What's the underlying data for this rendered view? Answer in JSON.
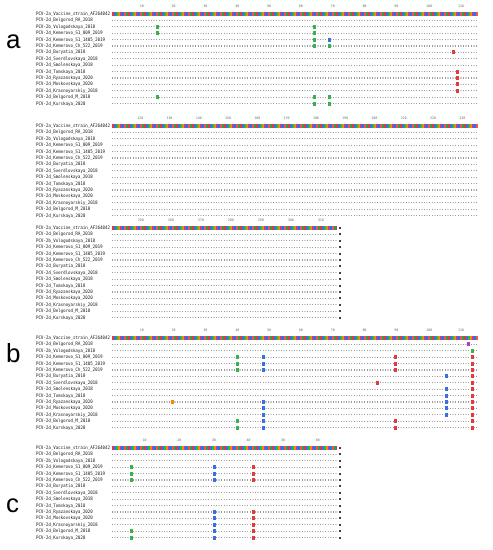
{
  "panels": [
    {
      "letter": "a",
      "blocks": [
        {
          "ruler": [
            "10",
            "20",
            "30",
            "40",
            "50",
            "60",
            "70",
            "80",
            "90",
            "100",
            "110"
          ],
          "rows": [
            {
              "name": "PCV-2a_Vaccine_strain_AF264042",
              "ref": true,
              "marks": []
            },
            {
              "name": "PCV-2d_Belgorod_RA_2018",
              "marks": []
            },
            {
              "name": "PCV-2b_Vologodskaya_2018",
              "marks": [
                {
                  "p": 0.12,
                  "c": "#37b24d"
                },
                {
                  "p": 0.55,
                  "c": "#37b24d"
                }
              ]
            },
            {
              "name": "PCV-2d_Kemerovo_S1_809_2019",
              "marks": [
                {
                  "p": 0.12,
                  "c": "#37b24d"
                },
                {
                  "p": 0.55,
                  "c": "#37b24d"
                }
              ]
            },
            {
              "name": "PCV-2d_Kemerovo_S1_1405_2019",
              "marks": [
                {
                  "p": 0.55,
                  "c": "#37b24d"
                },
                {
                  "p": 0.59,
                  "c": "#3b6fe0"
                }
              ]
            },
            {
              "name": "PCV-2d_Kemerovo_Ch_522_2019",
              "marks": [
                {
                  "p": 0.55,
                  "c": "#37b24d"
                },
                {
                  "p": 0.59,
                  "c": "#37b24d"
                }
              ]
            },
            {
              "name": "PCV-2d_Buryatia_2018",
              "marks": [
                {
                  "p": 0.93,
                  "c": "#e23b3b"
                }
              ]
            },
            {
              "name": "PCV-2d_Sverdlovskaya_2018",
              "marks": []
            },
            {
              "name": "PCV-2d_Smolenskaya_2018",
              "marks": []
            },
            {
              "name": "PCV-2d_Tomskaya_2018",
              "marks": [
                {
                  "p": 0.94,
                  "c": "#e23b3b"
                }
              ]
            },
            {
              "name": "PCV-2d_Ryazanskaya_2020",
              "marks": [
                {
                  "p": 0.94,
                  "c": "#e23b3b"
                }
              ]
            },
            {
              "name": "PCV-2d_Moskovskaya_2020",
              "marks": [
                {
                  "p": 0.94,
                  "c": "#e23b3b"
                }
              ]
            },
            {
              "name": "PCV-2d_Krasnoyarskiy_2018",
              "marks": [
                {
                  "p": 0.94,
                  "c": "#e23b3b"
                }
              ]
            },
            {
              "name": "PCV-2d_Belgorod_M_2018",
              "marks": [
                {
                  "p": 0.12,
                  "c": "#37b24d"
                },
                {
                  "p": 0.55,
                  "c": "#37b24d"
                },
                {
                  "p": 0.59,
                  "c": "#37b24d"
                }
              ]
            },
            {
              "name": "PCV-2d_Kurskaya_2020",
              "marks": [
                {
                  "p": 0.55,
                  "c": "#37b24d"
                },
                {
                  "p": 0.59,
                  "c": "#37b24d"
                }
              ]
            }
          ]
        },
        {
          "ruler": [
            "120",
            "130",
            "140",
            "150",
            "160",
            "170",
            "180",
            "190",
            "200",
            "210",
            "220",
            "230"
          ],
          "rows": [
            {
              "name": "PCV-2a_Vaccine_strain_AF264042",
              "ref": true,
              "marks": []
            },
            {
              "name": "PCV-2d_Belgorod_RA_2018",
              "marks": []
            },
            {
              "name": "PCV-2b_Vologodskaya_2018",
              "marks": []
            },
            {
              "name": "PCV-2d_Kemerovo_S1_809_2019",
              "marks": []
            },
            {
              "name": "PCV-2d_Kemerovo_S1_1405_2019",
              "marks": []
            },
            {
              "name": "PCV-2d_Kemerovo_Ch_522_2019",
              "marks": []
            },
            {
              "name": "PCV-2d_Buryatia_2018",
              "marks": []
            },
            {
              "name": "PCV-2d_Sverdlovskaya_2018",
              "marks": []
            },
            {
              "name": "PCV-2d_Smolenskaya_2018",
              "marks": []
            },
            {
              "name": "PCV-2d_Tomskaya_2018",
              "marks": []
            },
            {
              "name": "PCV-2d_Ryazanskaya_2020",
              "marks": []
            },
            {
              "name": "PCV-2d_Moskovskaya_2020",
              "marks": []
            },
            {
              "name": "PCV-2d_Krasnoyarskiy_2018",
              "marks": []
            },
            {
              "name": "PCV-2d_Belgorod_M_2018",
              "marks": []
            },
            {
              "name": "PCV-2d_Kurskaya_2020",
              "marks": []
            }
          ]
        },
        {
          "ruler": [
            "250",
            "260",
            "270",
            "280",
            "290",
            "300",
            "310"
          ],
          "short": true,
          "rows": [
            {
              "name": "PCV-2a_Vaccine_strain_AF264042",
              "ref": true,
              "marks": []
            },
            {
              "name": "PCV-2d_Belgorod_RA_2018",
              "marks": []
            },
            {
              "name": "PCV-2b_Vologodskaya_2018",
              "marks": []
            },
            {
              "name": "PCV-2d_Kemerovo_S1_809_2019",
              "marks": []
            },
            {
              "name": "PCV-2d_Kemerovo_S1_1405_2019",
              "marks": []
            },
            {
              "name": "PCV-2d_Kemerovo_Ch_522_2019",
              "marks": []
            },
            {
              "name": "PCV-2d_Buryatia_2018",
              "marks": []
            },
            {
              "name": "PCV-2d_Sverdlovskaya_2018",
              "marks": []
            },
            {
              "name": "PCV-2d_Smolenskaya_2018",
              "marks": []
            },
            {
              "name": "PCV-2d_Tomskaya_2018",
              "marks": []
            },
            {
              "name": "PCV-2d_Ryazanskaya_2020",
              "marks": []
            },
            {
              "name": "PCV-2d_Moskovskaya_2020",
              "marks": []
            },
            {
              "name": "PCV-2d_Krasnoyarskiy_2018",
              "marks": []
            },
            {
              "name": "PCV-2d_Belgorod_M_2018",
              "marks": []
            },
            {
              "name": "PCV-2d_Kurskaya_2020",
              "marks": []
            }
          ]
        }
      ]
    },
    {
      "letter": "b",
      "blocks": [
        {
          "ruler": [
            "10",
            "20",
            "30",
            "40",
            "50",
            "60",
            "70",
            "80",
            "90",
            "100",
            "110"
          ],
          "rows": [
            {
              "name": "PCV-2a_Vaccine_strain_AF264042",
              "ref": true,
              "marks": []
            },
            {
              "name": "PCV-2d_Belgorod_RA_2018",
              "marks": [
                {
                  "p": 0.97,
                  "c": "#ae3ec9"
                }
              ]
            },
            {
              "name": "PCV-2b_Vologodskaya_2018",
              "marks": [
                {
                  "p": 0.98,
                  "c": "#37b24d"
                }
              ]
            },
            {
              "name": "PCV-2d_Kemerovo_S1_809_2019",
              "marks": [
                {
                  "p": 0.34,
                  "c": "#37b24d"
                },
                {
                  "p": 0.41,
                  "c": "#3b6fe0"
                },
                {
                  "p": 0.77,
                  "c": "#e23b3b"
                },
                {
                  "p": 0.98,
                  "c": "#e23b3b"
                }
              ]
            },
            {
              "name": "PCV-2d_Kemerovo_S1_1405_2019",
              "marks": [
                {
                  "p": 0.34,
                  "c": "#37b24d"
                },
                {
                  "p": 0.41,
                  "c": "#3b6fe0"
                },
                {
                  "p": 0.77,
                  "c": "#e23b3b"
                },
                {
                  "p": 0.98,
                  "c": "#e23b3b"
                }
              ]
            },
            {
              "name": "PCV-2d_Kemerovo_Ch_522_2019",
              "marks": [
                {
                  "p": 0.34,
                  "c": "#37b24d"
                },
                {
                  "p": 0.41,
                  "c": "#3b6fe0"
                },
                {
                  "p": 0.77,
                  "c": "#e23b3b"
                },
                {
                  "p": 0.98,
                  "c": "#e23b3b"
                }
              ]
            },
            {
              "name": "PCV-2d_Buryatia_2018",
              "marks": [
                {
                  "p": 0.91,
                  "c": "#3b6fe0"
                },
                {
                  "p": 0.98,
                  "c": "#e23b3b"
                }
              ]
            },
            {
              "name": "PCV-2d_Sverdlovskaya_2018",
              "marks": [
                {
                  "p": 0.72,
                  "c": "#e23b3b"
                },
                {
                  "p": 0.98,
                  "c": "#e23b3b"
                }
              ]
            },
            {
              "name": "PCV-2d_Smolenskaya_2018",
              "marks": [
                {
                  "p": 0.91,
                  "c": "#3b6fe0"
                },
                {
                  "p": 0.98,
                  "c": "#e23b3b"
                }
              ]
            },
            {
              "name": "PCV-2d_Tomskaya_2018",
              "marks": [
                {
                  "p": 0.91,
                  "c": "#3b6fe0"
                },
                {
                  "p": 0.98,
                  "c": "#e23b3b"
                }
              ]
            },
            {
              "name": "PCV-2d_Ryazanskaya_2020",
              "marks": [
                {
                  "p": 0.16,
                  "c": "#f08c00"
                },
                {
                  "p": 0.41,
                  "c": "#3b6fe0"
                },
                {
                  "p": 0.91,
                  "c": "#3b6fe0"
                },
                {
                  "p": 0.98,
                  "c": "#e23b3b"
                }
              ]
            },
            {
              "name": "PCV-2d_Moskovskaya_2020",
              "marks": [
                {
                  "p": 0.41,
                  "c": "#3b6fe0"
                },
                {
                  "p": 0.91,
                  "c": "#3b6fe0"
                },
                {
                  "p": 0.98,
                  "c": "#e23b3b"
                }
              ]
            },
            {
              "name": "PCV-2d_Krasnoyarskiy_2018",
              "marks": [
                {
                  "p": 0.41,
                  "c": "#3b6fe0"
                },
                {
                  "p": 0.91,
                  "c": "#3b6fe0"
                },
                {
                  "p": 0.98,
                  "c": "#e23b3b"
                }
              ]
            },
            {
              "name": "PCV-2d_Belgorod_M_2018",
              "marks": [
                {
                  "p": 0.34,
                  "c": "#37b24d"
                },
                {
                  "p": 0.41,
                  "c": "#3b6fe0"
                },
                {
                  "p": 0.77,
                  "c": "#e23b3b"
                },
                {
                  "p": 0.98,
                  "c": "#e23b3b"
                }
              ]
            },
            {
              "name": "PCV-2d_Kurskaya_2020",
              "marks": [
                {
                  "p": 0.34,
                  "c": "#37b24d"
                },
                {
                  "p": 0.41,
                  "c": "#3b6fe0"
                },
                {
                  "p": 0.77,
                  "c": "#e23b3b"
                },
                {
                  "p": 0.98,
                  "c": "#e23b3b"
                }
              ]
            }
          ]
        }
      ]
    },
    {
      "letter": "c",
      "blocks": [
        {
          "ruler": [
            "10",
            "20",
            "30",
            "40",
            "50",
            "60"
          ],
          "short": true,
          "rows": [
            {
              "name": "PCV-2a_Vaccine_strain_AF264042",
              "ref": true,
              "marks": []
            },
            {
              "name": "PCV-2d_Belgorod_RA_2018",
              "marks": []
            },
            {
              "name": "PCV-2b_Vologodskaya_2018",
              "marks": []
            },
            {
              "name": "PCV-2d_Kemerovo_S1_809_2019",
              "marks": [
                {
                  "p": 0.08,
                  "c": "#37b24d"
                },
                {
                  "p": 0.45,
                  "c": "#3b6fe0"
                },
                {
                  "p": 0.62,
                  "c": "#e23b3b"
                }
              ]
            },
            {
              "name": "PCV-2d_Kemerovo_S1_1405_2019",
              "marks": [
                {
                  "p": 0.08,
                  "c": "#37b24d"
                },
                {
                  "p": 0.45,
                  "c": "#3b6fe0"
                },
                {
                  "p": 0.62,
                  "c": "#e23b3b"
                }
              ]
            },
            {
              "name": "PCV-2d_Kemerovo_Ch_522_2019",
              "marks": [
                {
                  "p": 0.08,
                  "c": "#37b24d"
                },
                {
                  "p": 0.45,
                  "c": "#3b6fe0"
                },
                {
                  "p": 0.62,
                  "c": "#e23b3b"
                }
              ]
            },
            {
              "name": "PCV-2d_Buryatia_2018",
              "marks": []
            },
            {
              "name": "PCV-2d_Sverdlovskaya_2018",
              "marks": []
            },
            {
              "name": "PCV-2d_Smolenskaya_2018",
              "marks": []
            },
            {
              "name": "PCV-2d_Tomskaya_2018",
              "marks": []
            },
            {
              "name": "PCV-2d_Ryazanskaya_2020",
              "marks": [
                {
                  "p": 0.45,
                  "c": "#3b6fe0"
                },
                {
                  "p": 0.62,
                  "c": "#e23b3b"
                }
              ]
            },
            {
              "name": "PCV-2d_Moskovskaya_2020",
              "marks": [
                {
                  "p": 0.45,
                  "c": "#3b6fe0"
                },
                {
                  "p": 0.62,
                  "c": "#e23b3b"
                }
              ]
            },
            {
              "name": "PCV-2d_Krasnoyarskiy_2018",
              "marks": [
                {
                  "p": 0.45,
                  "c": "#3b6fe0"
                },
                {
                  "p": 0.62,
                  "c": "#e23b3b"
                }
              ]
            },
            {
              "name": "PCV-2d_Belgorod_M_2018",
              "marks": [
                {
                  "p": 0.08,
                  "c": "#37b24d"
                },
                {
                  "p": 0.45,
                  "c": "#3b6fe0"
                },
                {
                  "p": 0.62,
                  "c": "#e23b3b"
                }
              ]
            },
            {
              "name": "PCV-2d_Kurskaya_2020",
              "marks": [
                {
                  "p": 0.08,
                  "c": "#37b24d"
                },
                {
                  "p": 0.45,
                  "c": "#3b6fe0"
                },
                {
                  "p": 0.62,
                  "c": "#e23b3b"
                }
              ]
            }
          ]
        }
      ]
    }
  ]
}
